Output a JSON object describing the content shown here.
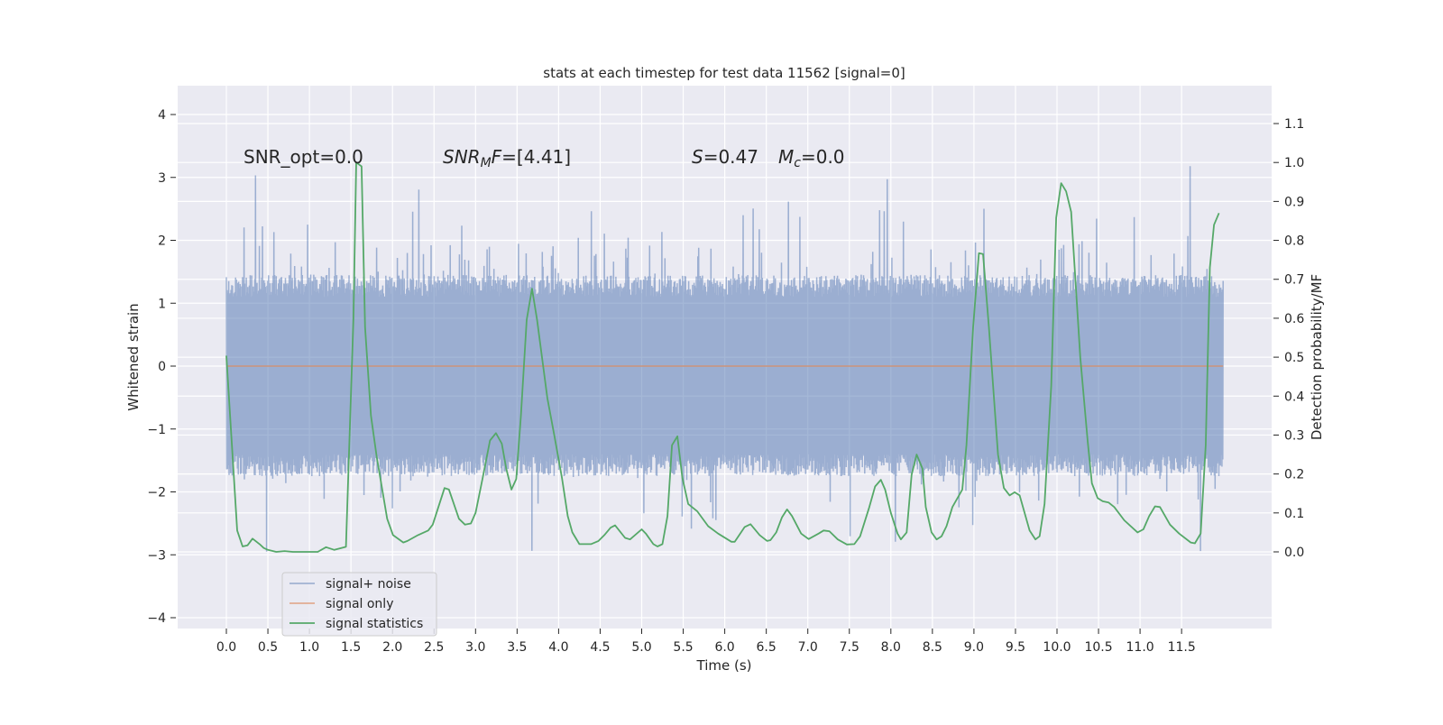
{
  "chart_data": {
    "type": "line",
    "title": "stats at each timestep for test data 11562 [signal=0]",
    "xlabel": "Time (s)",
    "ylabel": "Whitened strain",
    "ylabel_right": "Detection probability/MF",
    "xlim": [
      -0.6,
      12.6
    ],
    "ylim": [
      -4.15,
      4.45
    ],
    "ylim_right": [
      -0.2,
      1.19
    ],
    "grid": true,
    "x_ticks": [
      "0.0",
      "0.5",
      "1.0",
      "1.5",
      "2.0",
      "2.5",
      "3.0",
      "3.5",
      "4.0",
      "4.5",
      "5.0",
      "5.5",
      "6.0",
      "6.5",
      "7.0",
      "7.5",
      "8.0",
      "8.5",
      "9.0",
      "9.5",
      "10.0",
      "10.5",
      "11.0",
      "11.5"
    ],
    "y_ticks": [
      "4",
      "3",
      "2",
      "1",
      "0",
      "−1",
      "−2",
      "−3",
      "−4"
    ],
    "y_tick_values": [
      4,
      3,
      2,
      1,
      0,
      -1,
      -2,
      -3,
      -4
    ],
    "y_ticks_right": [
      "1.1",
      "1.0",
      "0.9",
      "0.8",
      "0.7",
      "0.6",
      "0.5",
      "0.4",
      "0.3",
      "0.2",
      "0.1",
      "0.0"
    ],
    "y_tick_values_right": [
      1.1,
      1.0,
      0.9,
      0.8,
      0.7,
      0.6,
      0.5,
      0.4,
      0.3,
      0.2,
      0.1,
      0.0
    ],
    "annotations": {
      "snr_opt": "SNR_opt=0.0",
      "snr_mf_main": "SNR",
      "snr_mf_sub": "M",
      "snr_mf_tail": "F",
      "snr_mf_value": "=[4.41]",
      "s_main": "S",
      "s_value": "=0.47",
      "mc_main": "M",
      "mc_sub": "c",
      "mc_value": "=0.0"
    },
    "legend": {
      "placement": "lower-left",
      "entries": [
        "signal+ noise",
        "signal only",
        "signal statistics"
      ]
    },
    "colors": {
      "noise": "#4c72b0",
      "signal": "#dd8452",
      "stats": "#55a868",
      "bg": "#eaeaf2"
    },
    "series": [
      {
        "name": "signal+ noise",
        "axis": "left",
        "t_range": [
          0,
          12.0
        ],
        "typical_range": [
          -1.7,
          1.4
        ],
        "extreme_range": [
          -3.8,
          4.1
        ]
      },
      {
        "name": "signal only",
        "axis": "left",
        "t": [
          0,
          12.0
        ],
        "values": [
          0,
          0
        ]
      },
      {
        "name": "signal statistics",
        "axis": "right",
        "t": [
          0,
          0.13,
          0.195,
          0.255,
          0.315,
          0.4,
          0.45,
          0.5,
          0.6,
          0.7,
          0.8,
          0.9,
          1.0,
          1.1,
          1.2,
          1.3,
          1.44,
          1.53,
          1.564,
          1.628,
          1.67,
          1.74,
          1.81,
          1.936,
          2.006,
          2.13,
          2.18,
          2.307,
          2.43,
          2.484,
          2.626,
          2.68,
          2.8,
          2.873,
          2.944,
          3.0,
          3.086,
          3.174,
          3.245,
          3.316,
          3.369,
          3.432,
          3.49,
          3.546,
          3.616,
          3.68,
          3.74,
          3.864,
          3.95,
          4.04,
          4.11,
          4.165,
          4.25,
          4.39,
          4.48,
          4.55,
          4.625,
          4.68,
          4.8,
          4.86,
          5.0,
          5.05,
          5.14,
          5.19,
          5.25,
          5.31,
          5.365,
          5.43,
          5.49,
          5.56,
          5.67,
          5.8,
          5.92,
          6.08,
          6.12,
          6.24,
          6.31,
          6.42,
          6.51,
          6.55,
          6.62,
          6.69,
          6.75,
          6.81,
          6.92,
          7.01,
          7.13,
          7.19,
          7.26,
          7.36,
          7.47,
          7.56,
          7.63,
          7.74,
          7.81,
          7.88,
          7.93,
          8.0,
          8.08,
          8.12,
          8.19,
          8.25,
          8.31,
          8.38,
          8.42,
          8.49,
          8.55,
          8.61,
          8.67,
          8.74,
          8.86,
          8.91,
          8.99,
          9.06,
          9.11,
          9.18,
          9.29,
          9.36,
          9.43,
          9.49,
          9.55,
          9.67,
          9.74,
          9.79,
          9.85,
          9.93,
          9.99,
          10.05,
          10.11,
          10.17,
          10.28,
          10.37,
          10.42,
          10.49,
          10.55,
          10.62,
          10.69,
          10.81,
          10.97,
          11.04,
          11.11,
          11.18,
          11.24,
          11.36,
          11.47,
          11.61,
          11.66,
          11.73,
          11.79,
          11.84,
          11.89,
          11.95
        ],
        "values": [
          0.504,
          0.055,
          0.014,
          0.017,
          0.034,
          0.02,
          0.01,
          0.005,
          0.0,
          0.002,
          0.0,
          0.0,
          0.0,
          0.0,
          0.012,
          0.005,
          0.013,
          0.6,
          1.0,
          0.99,
          0.577,
          0.35,
          0.244,
          0.085,
          0.043,
          0.024,
          0.028,
          0.043,
          0.055,
          0.07,
          0.164,
          0.16,
          0.085,
          0.07,
          0.073,
          0.1,
          0.19,
          0.286,
          0.305,
          0.278,
          0.214,
          0.16,
          0.187,
          0.35,
          0.596,
          0.676,
          0.596,
          0.395,
          0.297,
          0.19,
          0.092,
          0.05,
          0.02,
          0.02,
          0.028,
          0.043,
          0.062,
          0.068,
          0.036,
          0.032,
          0.058,
          0.047,
          0.02,
          0.014,
          0.02,
          0.092,
          0.274,
          0.297,
          0.19,
          0.123,
          0.104,
          0.066,
          0.047,
          0.026,
          0.026,
          0.064,
          0.071,
          0.043,
          0.028,
          0.03,
          0.05,
          0.089,
          0.109,
          0.092,
          0.047,
          0.033,
          0.047,
          0.055,
          0.053,
          0.032,
          0.019,
          0.02,
          0.04,
          0.115,
          0.168,
          0.185,
          0.16,
          0.1,
          0.047,
          0.032,
          0.05,
          0.198,
          0.25,
          0.214,
          0.115,
          0.05,
          0.032,
          0.04,
          0.066,
          0.115,
          0.16,
          0.274,
          0.577,
          0.767,
          0.765,
          0.577,
          0.25,
          0.164,
          0.145,
          0.153,
          0.145,
          0.055,
          0.032,
          0.04,
          0.123,
          0.426,
          0.858,
          0.947,
          0.926,
          0.873,
          0.5,
          0.282,
          0.176,
          0.138,
          0.13,
          0.127,
          0.115,
          0.081,
          0.05,
          0.058,
          0.092,
          0.117,
          0.115,
          0.07,
          0.047,
          0.024,
          0.022,
          0.047,
          0.274,
          0.73,
          0.84,
          0.87
        ]
      }
    ]
  }
}
